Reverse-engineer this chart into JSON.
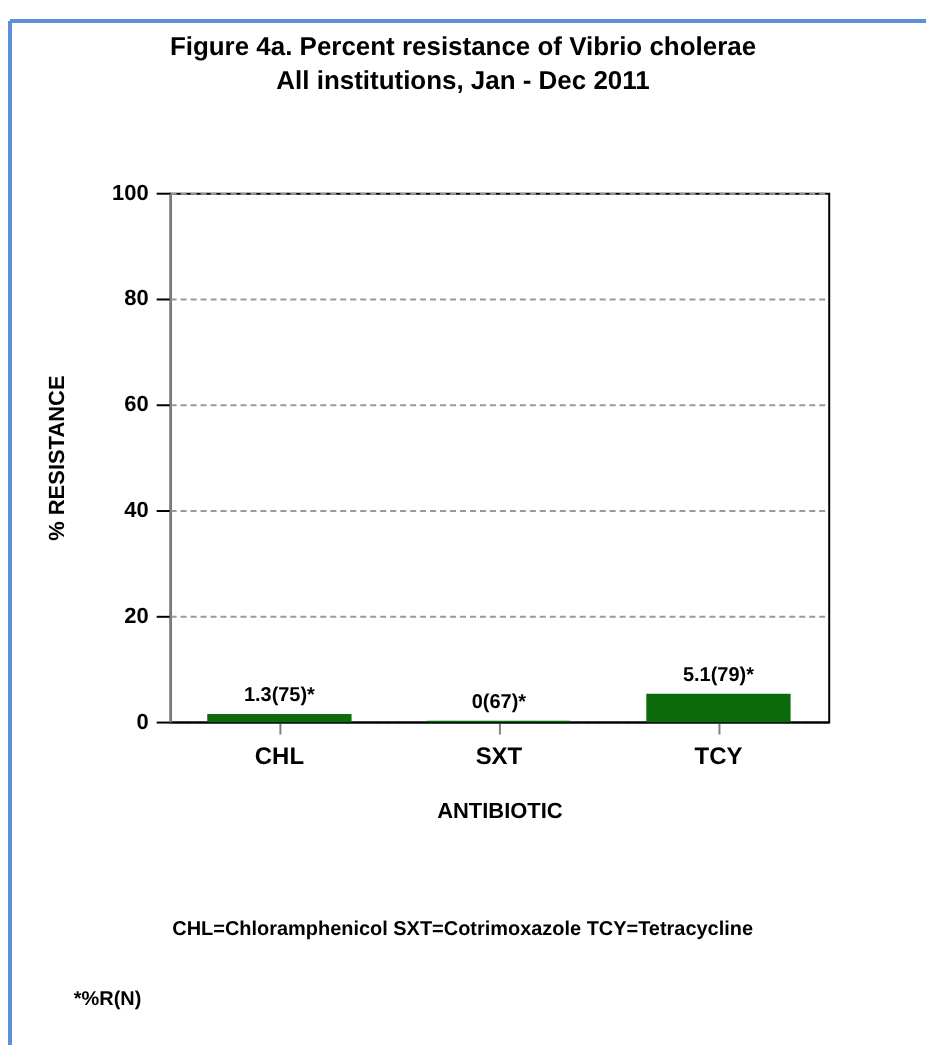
{
  "chart_data": {
    "type": "bar",
    "title": "Figure 4a. Percent resistance of Vibrio cholerae",
    "subtitle": "All institutions, Jan - Dec 2011",
    "xlabel": "ANTIBIOTIC",
    "ylabel": "% RESISTANCE",
    "categories": [
      "CHL",
      "SXT",
      "TCY"
    ],
    "values": [
      1.3,
      0,
      5.1
    ],
    "color": "#0b6b0b",
    "value_labels": [
      "1.3(75)*",
      "0(67)*",
      "5.1(79)*"
    ],
    "ylim": [
      0,
      100
    ],
    "yticks": [
      0,
      20,
      40,
      60,
      80,
      100
    ],
    "grid": "y",
    "annotations": [
      "CHL=Chloramphenicol  SXT=Cotrimoxazole  TCY=Tetracycline",
      "*%R(N)"
    ]
  }
}
